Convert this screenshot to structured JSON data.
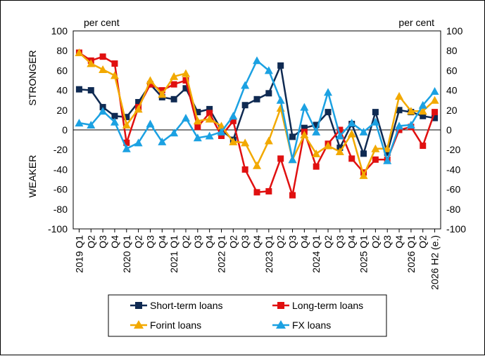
{
  "chart_data": {
    "type": "line",
    "unit_left": "per cent",
    "unit_right": "per cent",
    "label_stronger": "STRONGER",
    "label_weaker": "WEAKER",
    "ylim": [
      -100,
      100
    ],
    "yticks": [
      "100",
      "80",
      "60",
      "40",
      "20",
      "0",
      "-20",
      "-40",
      "-60",
      "-80",
      "-100"
    ],
    "grid": false,
    "legend_position": "bottom",
    "categories": [
      "2019 Q1",
      "Q2",
      "Q3",
      "Q4",
      "2020 Q1",
      "Q2",
      "Q3",
      "Q4",
      "2021 Q1",
      "Q2",
      "Q3",
      "Q4",
      "2022 Q1",
      "Q2",
      "Q3",
      "Q4",
      "2023 Q1",
      "Q2",
      "Q3",
      "Q4",
      "2024 Q1",
      "Q2",
      "Q3",
      "Q4",
      "2025 Q1",
      "Q2",
      "Q3",
      "Q4",
      "2026 Q1",
      "Q2",
      "2026 H2 (e.)"
    ],
    "series": [
      {
        "name": "Short-term loans",
        "color": "#0f2a52",
        "marker": "square",
        "values": [
          41,
          40,
          23,
          14,
          13,
          28,
          46,
          33,
          31,
          42,
          18,
          21,
          0,
          -10,
          25,
          31,
          37,
          65,
          -7,
          2,
          5,
          18,
          -18,
          6,
          -24,
          18,
          -23,
          20,
          18,
          14,
          12
        ]
      },
      {
        "name": "Long-term loans",
        "color": "#e01010",
        "marker": "square",
        "values": [
          78,
          70,
          74,
          67,
          -13,
          23,
          46,
          40,
          46,
          50,
          3,
          17,
          -6,
          9,
          -40,
          -63,
          -62,
          -29,
          -66,
          -2,
          -37,
          -14,
          0,
          -29,
          -43,
          -30,
          -30,
          0,
          3,
          -16,
          18
        ]
      },
      {
        "name": "Forint loans",
        "color": "#f2a900",
        "marker": "triangle",
        "values": [
          78,
          67,
          61,
          55,
          5,
          21,
          50,
          36,
          54,
          57,
          9,
          11,
          4,
          -12,
          -13,
          -36,
          -11,
          22,
          -30,
          -5,
          -24,
          -16,
          -22,
          -4,
          -46,
          -19,
          -19,
          34,
          19,
          19,
          30
        ]
      },
      {
        "name": "FX loans",
        "color": "#1ba1e2",
        "marker": "triangle",
        "values": [
          7,
          5,
          19,
          8,
          -19,
          -13,
          6,
          -12,
          -3,
          12,
          -8,
          -6,
          -2,
          14,
          45,
          70,
          60,
          30,
          -30,
          23,
          -2,
          38,
          -6,
          7,
          -2,
          8,
          -31,
          4,
          5,
          25,
          39
        ]
      }
    ]
  }
}
